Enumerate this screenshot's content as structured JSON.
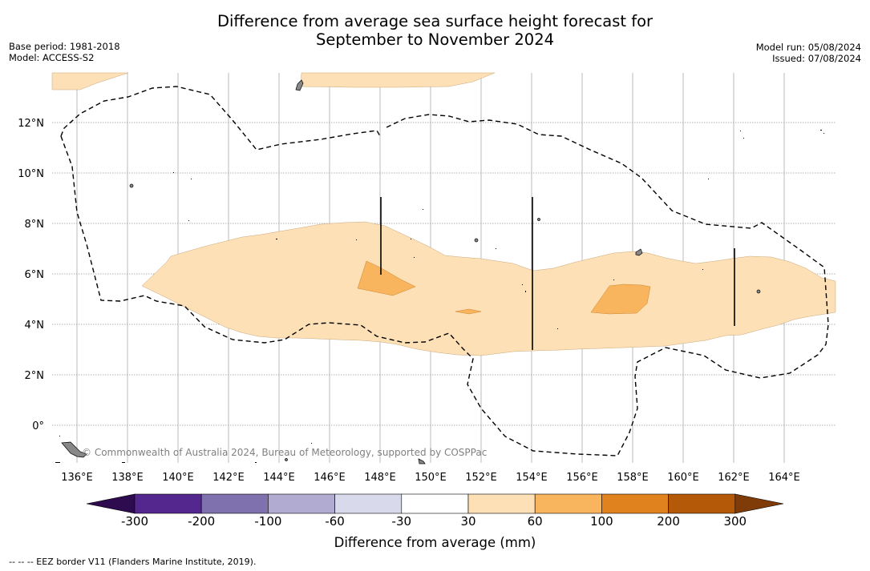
{
  "title_line1": "Difference from average sea surface height forecast for",
  "title_line2": "September to November 2024",
  "meta_left": {
    "base_period": "Base period: 1981-2018",
    "model": "Model: ACCESS-S2"
  },
  "meta_right": {
    "model_run": "Model run: 05/08/2024",
    "issued": "Issued: 07/08/2024"
  },
  "map": {
    "lon_ticks": [
      "136°E",
      "138°E",
      "140°E",
      "142°E",
      "144°E",
      "146°E",
      "148°E",
      "150°E",
      "152°E",
      "154°E",
      "156°E",
      "158°E",
      "160°E",
      "162°E",
      "164°E"
    ],
    "lat_ticks": [
      "12°N",
      "10°N",
      "8°N",
      "6°N",
      "4°N",
      "2°N",
      "0°"
    ],
    "lon_range": [
      135,
      166
    ],
    "lat_range": [
      -1.5,
      14
    ],
    "credit": "© Commonwealth of Australia 2024, Bureau of Meteorology, supported by COSPPac"
  },
  "colorbar": {
    "labels": [
      "-300",
      "-200",
      "-100",
      "-60",
      "-30",
      "30",
      "60",
      "100",
      "200",
      "300"
    ],
    "colors": [
      "#2d0b4e",
      "#54278f",
      "#7f70ae",
      "#b1abd2",
      "#d8daeb",
      "#ffffff",
      "#fde0b5",
      "#f9b55e",
      "#e0831e",
      "#b35907",
      "#7f3b08"
    ],
    "title": "Difference from average (mm)"
  },
  "footnote": "--  --  -- EEZ border V11 (Flanders Marine Institute, 2019)."
}
